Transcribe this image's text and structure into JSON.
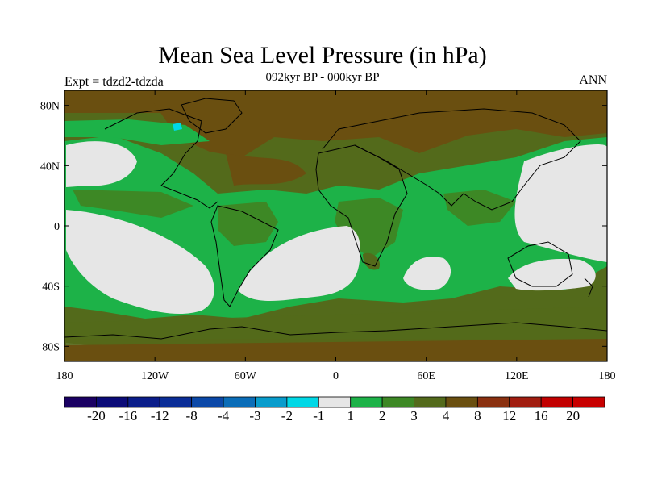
{
  "title": "Mean Sea Level Pressure (in hPa)",
  "subtitle": "092kyr BP - 000kyr BP",
  "left_label": "Expt = tdzd2-tdzda",
  "right_label": "ANN",
  "map": {
    "projection": "cylindrical-equidistant",
    "lon_range": [
      -180,
      180
    ],
    "lat_range": [
      -90,
      90
    ],
    "lat_ticks": [
      {
        "value": 80,
        "label": "80N"
      },
      {
        "value": 40,
        "label": "40N"
      },
      {
        "value": 0,
        "label": "0"
      },
      {
        "value": -40,
        "label": "40S"
      },
      {
        "value": -80,
        "label": "80S"
      }
    ],
    "lon_ticks": [
      {
        "value": -180,
        "label": "180"
      },
      {
        "value": -120,
        "label": "120W"
      },
      {
        "value": -60,
        "label": "60W"
      },
      {
        "value": 0,
        "label": "0"
      },
      {
        "value": 60,
        "label": "60E"
      },
      {
        "value": 120,
        "label": "120E"
      },
      {
        "value": 180,
        "label": "180"
      }
    ]
  },
  "colorbar": {
    "levels": [
      "-20",
      "-16",
      "-12",
      "-8",
      "-4",
      "-3",
      "-2",
      "-1",
      "1",
      "2",
      "3",
      "4",
      "8",
      "12",
      "16",
      "20"
    ],
    "colors": [
      "#1a0063",
      "#0b0b78",
      "#0a1d8a",
      "#0a2d97",
      "#0b48a8",
      "#0a6db8",
      "#089ccc",
      "#00d8e6",
      "#e6e6e6",
      "#1db248",
      "#3d8825",
      "#536a1b",
      "#6a4f10",
      "#8a3010",
      "#a11d10",
      "#c20000",
      "#c80000"
    ]
  },
  "colors": {
    "ocean_neutral": "#e6e6e6",
    "green_light": "#1db248",
    "green_mid": "#3d8825",
    "olive": "#536a1b",
    "brown": "#6a4f10",
    "cyan": "#00d8e6",
    "coastline": "#000000"
  }
}
